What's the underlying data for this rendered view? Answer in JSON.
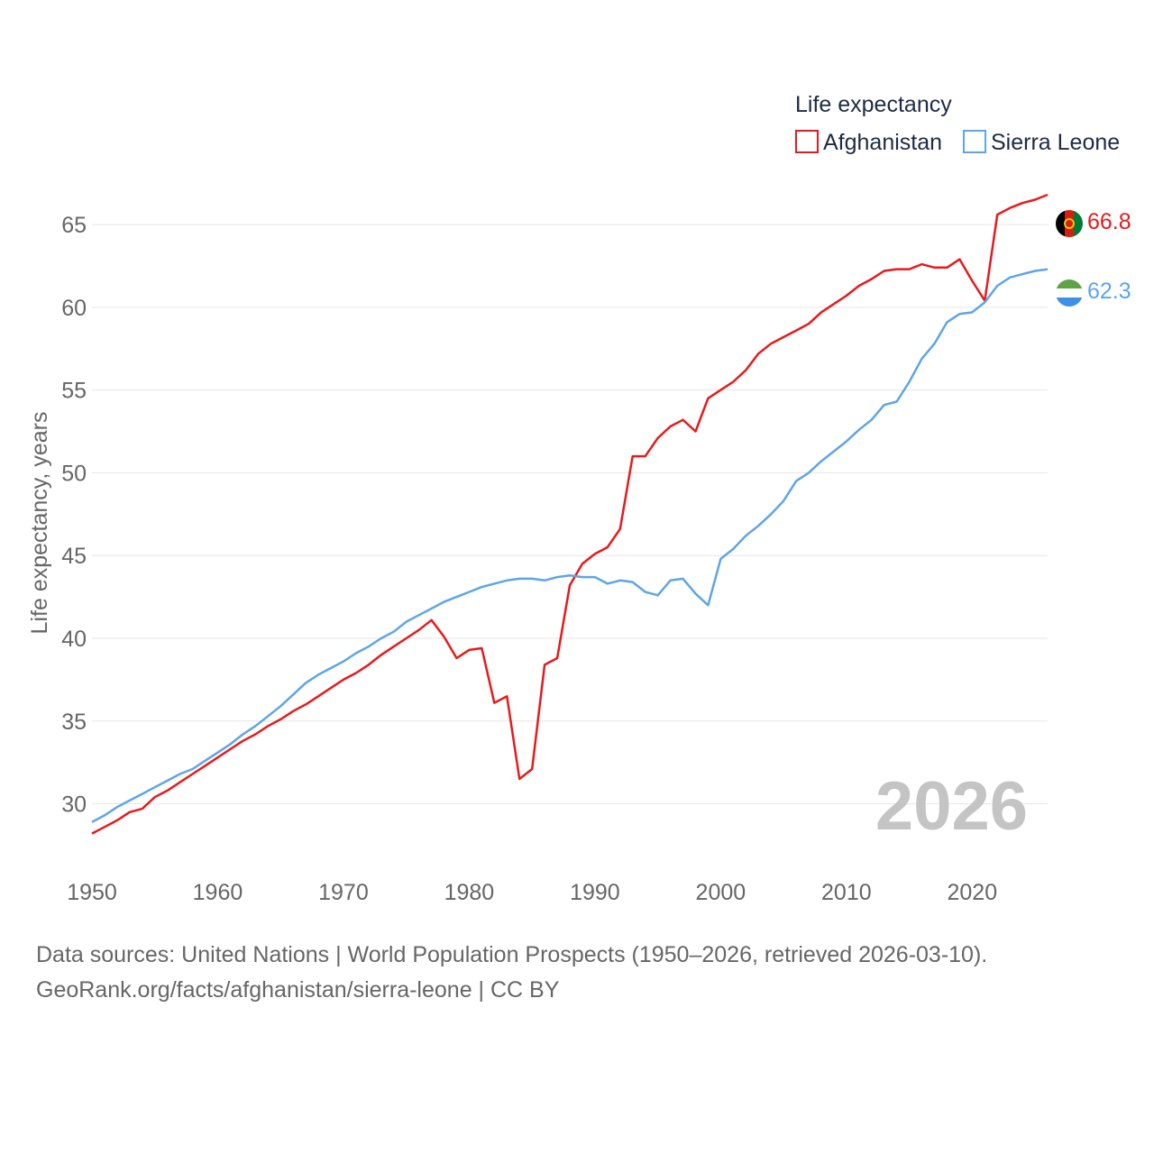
{
  "chart_data": {
    "type": "line",
    "legend_title": "Life expectancy",
    "ylabel": "Life expectancy, years",
    "xlim": [
      1950,
      2026
    ],
    "ylim": [
      26,
      68
    ],
    "yticks": [
      30,
      35,
      40,
      45,
      50,
      55,
      60,
      65
    ],
    "xticks": [
      1950,
      1960,
      1970,
      1980,
      1990,
      2000,
      2010,
      2020
    ],
    "year_label": "2026",
    "grid": true,
    "legend_position": "top-right",
    "series": [
      {
        "name": "Afghanistan",
        "color": "#e8191b",
        "end_label": "66.8",
        "flag": "flag-afghanistan",
        "start_year": 1950,
        "values": [
          28.2,
          28.6,
          29.0,
          29.5,
          29.7,
          30.4,
          30.8,
          31.3,
          31.8,
          32.3,
          32.8,
          33.3,
          33.8,
          34.2,
          34.7,
          35.1,
          35.6,
          36.0,
          36.5,
          37.0,
          37.5,
          37.9,
          38.4,
          39.0,
          39.5,
          40.0,
          40.5,
          41.1,
          40.1,
          38.8,
          39.3,
          39.4,
          36.1,
          36.5,
          31.5,
          32.1,
          38.4,
          38.8,
          43.2,
          44.5,
          45.1,
          45.5,
          46.6,
          51.0,
          51.0,
          52.1,
          52.8,
          53.2,
          52.5,
          54.5,
          55.0,
          55.5,
          56.2,
          57.2,
          57.8,
          58.2,
          58.6,
          59.0,
          59.7,
          60.2,
          60.7,
          61.3,
          61.7,
          62.2,
          62.3,
          62.3,
          62.6,
          62.4,
          62.4,
          62.9,
          61.6,
          60.4,
          65.6,
          66.0,
          66.3,
          66.5,
          66.8
        ]
      },
      {
        "name": "Sierra Leone",
        "color": "#5da5e8",
        "end_label": "62.3",
        "flag": "flag-sierra-leone",
        "start_year": 1950,
        "values": [
          28.9,
          29.3,
          29.8,
          30.2,
          30.6,
          31.0,
          31.4,
          31.8,
          32.1,
          32.6,
          33.1,
          33.6,
          34.2,
          34.7,
          35.3,
          35.9,
          36.6,
          37.3,
          37.8,
          38.2,
          38.6,
          39.1,
          39.5,
          40.0,
          40.4,
          41.0,
          41.4,
          41.8,
          42.2,
          42.5,
          42.8,
          43.1,
          43.3,
          43.5,
          43.6,
          43.6,
          43.5,
          43.7,
          43.8,
          43.7,
          43.7,
          43.3,
          43.5,
          43.4,
          42.8,
          42.6,
          43.5,
          43.6,
          42.7,
          42.0,
          44.8,
          45.4,
          46.2,
          46.8,
          47.5,
          48.3,
          49.5,
          50.0,
          50.7,
          51.3,
          51.9,
          52.6,
          53.2,
          54.1,
          54.3,
          55.5,
          56.9,
          57.8,
          59.1,
          59.6,
          59.7,
          60.3,
          61.3,
          61.8,
          62.0,
          62.2,
          62.3
        ]
      }
    ]
  },
  "footer": {
    "source_line": "Data sources: United Nations | World Population Prospects (1950–2026, retrieved 2026-03-10).",
    "link_line": "GeoRank.org/facts/afghanistan/sierra-leone | CC BY"
  }
}
